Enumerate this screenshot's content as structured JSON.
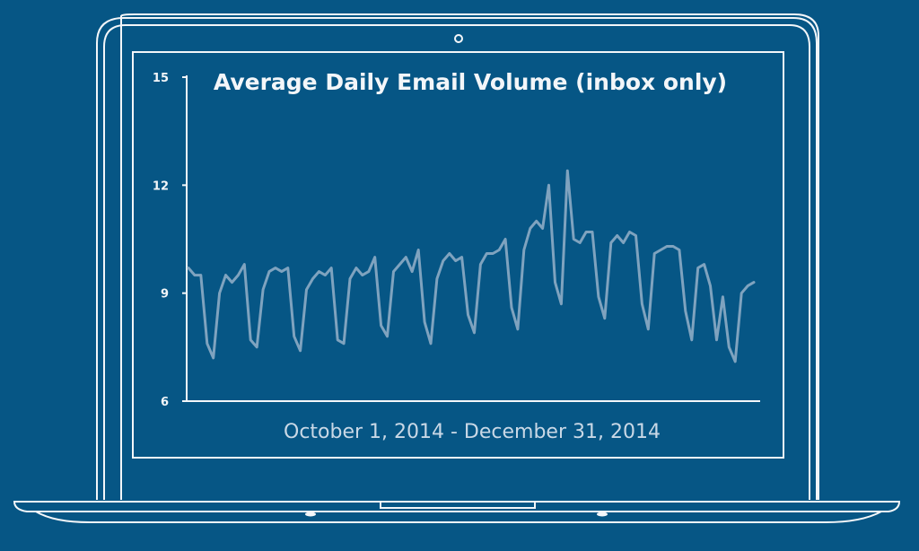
{
  "colors": {
    "background": "#065685",
    "outline": "#f3f6f9",
    "line": "#7fa3bf",
    "subtitle": "#c9d8e6"
  },
  "chart_data": {
    "type": "line",
    "title": "Average Daily Email Volume (inbox only)",
    "xlabel": "October 1, 2014 - December 31, 2014",
    "ylabel": "",
    "ylim": [
      6,
      15
    ],
    "yticks": [
      15,
      12,
      9,
      6
    ],
    "grid": false,
    "series": [
      {
        "values": [
          9.7,
          9.5,
          9.5,
          7.6,
          7.2,
          9.0,
          9.5,
          9.3,
          9.5,
          9.8,
          7.7,
          7.5,
          9.1,
          9.6,
          9.7,
          9.6,
          9.7,
          7.8,
          7.4,
          9.1,
          9.4,
          9.6,
          9.5,
          9.7,
          7.7,
          7.6,
          9.4,
          9.7,
          9.5,
          9.6,
          10.0,
          8.1,
          7.8,
          9.6,
          9.8,
          10.0,
          9.6,
          10.2,
          8.2,
          7.6,
          9.4,
          9.9,
          10.1,
          9.9,
          10.0,
          8.4,
          7.9,
          9.8,
          10.1,
          10.1,
          10.2,
          10.5,
          8.6,
          8.0,
          10.2,
          10.8,
          11.0,
          10.8,
          12.0,
          9.3,
          8.7,
          12.4,
          10.5,
          10.4,
          10.7,
          10.7,
          8.9,
          8.3,
          10.4,
          10.6,
          10.4,
          10.7,
          10.6,
          8.7,
          8.0,
          10.1,
          10.2,
          10.3,
          10.3,
          10.2,
          8.5,
          7.7,
          9.7,
          9.8,
          9.2,
          7.7,
          8.9,
          7.5,
          7.1,
          9.0,
          9.2,
          9.3
        ]
      }
    ]
  }
}
